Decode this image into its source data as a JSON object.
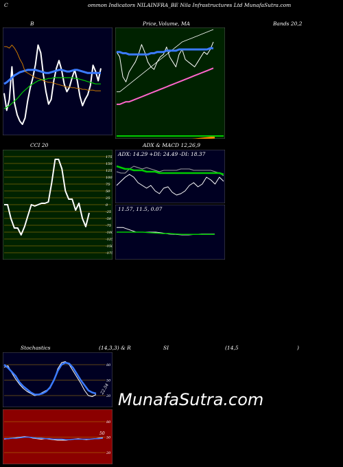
{
  "header": {
    "c_letter": "C",
    "title": "ommon  Indicators NILAINFRA_BE Nila  Infrastructures Ltd MunafaSutra.com"
  },
  "labels": {
    "b": "B",
    "price": "Price,",
    "volume": "Volume,",
    "ma": "MA",
    "bands": "Bands 20,2",
    "cci": "CCI 20",
    "adx_macd": "ADX  & MACD 12,26,9",
    "adx_values": "ADX: 14.29  +DI: 24.49 -DI: 18.37",
    "macd_values": "11.57,  11.5,  0.07",
    "stoch_left": "Stochastics",
    "stoch_mid": "(14,3,3) & R",
    "rsi_si": "SI",
    "rsi_params": "(14,5",
    "rsi_close": ")",
    "stoch_value": "22.54",
    "rsi_value": "50"
  },
  "watermark": "MunafaSutra.com",
  "colors": {
    "bollinger_bg": "#000022",
    "price_bg": "#002200",
    "cci_bg": "#002200",
    "adx_bg": "#000022",
    "stoch_bg": "#000022",
    "rsi_bg": "#8b0000",
    "line_white": "#ffffff",
    "line_blue": "#3b7bff",
    "line_green": "#00cc00",
    "line_orange": "#cc7a00",
    "line_pink": "#ff66cc",
    "grid_orange": "#b8860b"
  },
  "chart_data": [
    {
      "type": "line",
      "panel": "bollinger",
      "series": [
        {
          "values": [
            88,
            66,
            80,
            122,
            75,
            60,
            52,
            48,
            56,
            78,
            95,
            108,
            125,
            150,
            140,
            112,
            90,
            74,
            80,
            104,
            120,
            130,
            118,
            100,
            90,
            96,
            108,
            118,
            104,
            84,
            72,
            80,
            86,
            98,
            124,
            116,
            104,
            120
          ]
        },
        {
          "values": [
            68,
            70,
            72,
            75,
            78,
            81,
            85,
            89,
            92,
            95,
            98,
            100,
            102,
            104,
            105,
            106,
            106,
            107,
            107,
            108,
            108,
            108,
            108,
            108,
            108,
            108,
            108,
            107,
            107,
            106,
            105,
            104,
            103,
            102,
            101,
            100,
            100,
            100
          ]
        },
        {
          "values": [
            100,
            102,
            105,
            108,
            111,
            113,
            115,
            116,
            117,
            118,
            118,
            118,
            118,
            117,
            116,
            115,
            114,
            114,
            115,
            116,
            117,
            118,
            118,
            117,
            116,
            116,
            117,
            118,
            118,
            117,
            116,
            115,
            114,
            114,
            114,
            114,
            114,
            114
          ]
        },
        {
          "values": [
            148,
            148,
            146,
            150,
            146,
            140,
            132,
            126,
            116,
            114,
            112,
            110,
            108,
            107,
            106,
            104,
            103,
            102,
            102,
            101,
            100,
            99,
            98,
            97,
            96,
            96,
            95,
            95,
            94,
            94,
            93,
            93,
            92,
            92,
            92,
            91,
            91,
            91
          ]
        }
      ]
    },
    {
      "type": "line",
      "panel": "price_ma",
      "series": [
        {
          "values": [
            112,
            108,
            92,
            88,
            96,
            100,
            104,
            110,
            118,
            112,
            104,
            100,
            98,
            104,
            108,
            110,
            116,
            108,
            104,
            100,
            110,
            114,
            106,
            104,
            102,
            100,
            104,
            108,
            112,
            110,
            114,
            120
          ]
        },
        {
          "values": [
            80,
            80,
            82,
            84,
            86,
            88,
            90,
            92,
            94,
            96,
            98,
            100,
            102,
            104,
            106,
            108,
            110,
            112,
            114,
            116,
            118,
            120,
            121,
            122,
            123,
            124,
            125,
            126,
            127,
            128,
            129,
            130
          ]
        },
        {
          "values": [
            112,
            112,
            111,
            111,
            110,
            110,
            110,
            110,
            110,
            110,
            110,
            111,
            111,
            112,
            112,
            112,
            113,
            113,
            113,
            113,
            114,
            114,
            114,
            114,
            114,
            114,
            114,
            114,
            114,
            114,
            115,
            115
          ]
        },
        {
          "values": [
            70,
            70,
            71,
            72,
            72,
            73,
            74,
            75,
            76,
            77,
            78,
            79,
            80,
            81,
            82,
            83,
            84,
            85,
            86,
            87,
            88,
            89,
            90,
            91,
            92,
            93,
            94,
            95,
            96,
            97,
            98,
            99
          ]
        }
      ]
    },
    {
      "type": "line",
      "panel": "cci",
      "ylim": [
        -175,
        175
      ],
      "y_ticks": [
        175,
        150,
        125,
        100,
        75,
        50,
        25,
        0,
        -25,
        -50,
        -75,
        -100,
        -125,
        -150,
        -175
      ],
      "series": [
        {
          "values": [
            0,
            0,
            -50,
            -85,
            -85,
            -110,
            -80,
            -40,
            0,
            -5,
            0,
            5,
            5,
            10,
            80,
            165,
            165,
            130,
            50,
            20,
            20,
            -20,
            5,
            -50,
            -80,
            -30
          ]
        }
      ]
    },
    {
      "type": "line",
      "panel": "adx",
      "values_text": {
        "ADX": 14.29,
        "+DI": 24.49,
        "-DI": 18.37
      },
      "series": [
        {
          "values": [
            20,
            19,
            19,
            22,
            24,
            23,
            22,
            23,
            22,
            21,
            20,
            21,
            21,
            21,
            21,
            22,
            22,
            22,
            21,
            21,
            21,
            21,
            21,
            20,
            19,
            17
          ]
        },
        {
          "values": [
            24,
            23,
            22,
            22,
            21,
            21,
            21,
            20,
            20,
            20,
            19,
            19,
            19,
            19,
            19,
            19,
            19,
            19,
            19,
            19,
            19,
            19,
            19,
            19,
            19,
            18
          ]
        },
        {
          "values": [
            10,
            13,
            16,
            18,
            16,
            12,
            10,
            8,
            10,
            6,
            4,
            8,
            9,
            5,
            3,
            4,
            6,
            10,
            12,
            9,
            11,
            16,
            14,
            11,
            16,
            13
          ]
        }
      ]
    },
    {
      "type": "line",
      "panel": "macd",
      "values_text": {
        "macd": 11.57,
        "signal": 11.5,
        "hist": 0.07
      },
      "series": [
        {
          "values": [
            13,
            13,
            12.5,
            12,
            12,
            12,
            12,
            11.8,
            11.6,
            11.5,
            11.4,
            11.4,
            11.5,
            11.6,
            11.6,
            11.6
          ]
        },
        {
          "values": [
            12,
            12,
            12,
            12,
            12,
            11.9,
            11.8,
            11.7,
            11.7,
            11.6,
            11.5,
            11.5,
            11.5,
            11.5,
            11.5,
            11.5
          ]
        }
      ]
    },
    {
      "type": "line",
      "panel": "stochastics",
      "y_ticks": [
        80,
        50,
        20
      ],
      "series": [
        {
          "values": [
            75,
            78,
            64,
            52,
            42,
            34,
            28,
            24,
            20,
            22,
            26,
            30,
            34,
            50,
            72,
            84,
            86,
            80,
            68,
            56,
            44,
            30,
            20,
            18,
            22
          ]
        },
        {
          "values": [
            80,
            74,
            66,
            58,
            46,
            38,
            32,
            26,
            22,
            22,
            24,
            28,
            36,
            50,
            68,
            80,
            84,
            82,
            74,
            62,
            50,
            40,
            30,
            26,
            24
          ]
        }
      ]
    },
    {
      "type": "line",
      "panel": "rsi",
      "y_ticks": [
        80,
        50,
        20
      ],
      "series": [
        {
          "values": [
            46,
            47,
            48,
            49,
            50,
            51,
            50,
            48,
            47,
            46,
            47,
            46,
            45,
            44,
            44,
            44,
            45,
            46,
            47,
            46,
            45,
            46,
            47,
            48,
            49
          ]
        },
        {
          "values": [
            47,
            47,
            48,
            48,
            49,
            50,
            50,
            49,
            48,
            48,
            47,
            47,
            46,
            46,
            46,
            45,
            45,
            46,
            46,
            46,
            46,
            46,
            47,
            47,
            48
          ]
        }
      ]
    }
  ]
}
